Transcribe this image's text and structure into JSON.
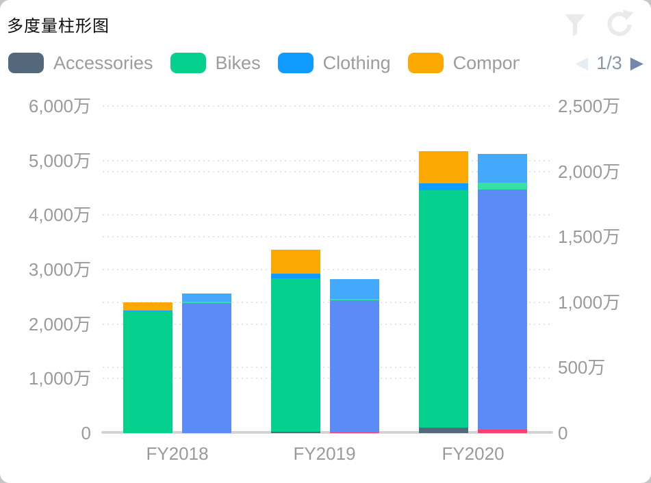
{
  "card": {
    "title": "多度量柱形图"
  },
  "header": {
    "icons": [
      {
        "name": "filter-icon",
        "color": "#eaeaea"
      },
      {
        "name": "refresh-icon",
        "color": "#eaeaea"
      }
    ]
  },
  "legend": {
    "items": [
      {
        "label": "Accessories",
        "color": "#54687B"
      },
      {
        "label": "Bikes",
        "color": "#05D08E"
      },
      {
        "label": "Clothing",
        "color": "#109BFF"
      },
      {
        "label": "Components",
        "color": "#FCA802",
        "displayed_truncated": true
      }
    ],
    "pager": {
      "label": "1/3",
      "prev_icon": "◀",
      "next_icon": "▶",
      "prev_enabled": false,
      "next_enabled": true
    }
  },
  "chart_data": {
    "type": "bar",
    "stacked": true,
    "dual_axis": true,
    "grid": "dotted",
    "legend_position": "top",
    "unit": "万",
    "categories": [
      "FY2018",
      "FY2019",
      "FY2020"
    ],
    "left_axis": {
      "min": 0,
      "max": 6000,
      "tick_step": 1000,
      "tick_labels": [
        "0",
        "1,000万",
        "2,000万",
        "3,000万",
        "4,000万",
        "5,000万",
        "6,000万"
      ]
    },
    "right_axis": {
      "min": 0,
      "max": 2500,
      "tick_step": 500,
      "tick_labels": [
        "0",
        "500万",
        "1,000万",
        "1,500万",
        "2,000万",
        "2,500万"
      ]
    },
    "series_left": [
      {
        "name": "Accessories",
        "color": "#54687B",
        "values": [
          0,
          25,
          100
        ]
      },
      {
        "name": "Bikes",
        "color": "#05D08E",
        "values": [
          2230,
          2815,
          4360
        ]
      },
      {
        "name": "Clothing",
        "color": "#109BFF",
        "values": [
          12,
          90,
          125
        ]
      },
      {
        "name": "Components",
        "color": "#FCA802",
        "values": [
          155,
          440,
          590
        ]
      }
    ],
    "series_right": [
      {
        "name": "",
        "color": "#FB3D6F",
        "values": [
          0,
          5,
          26
        ]
      },
      {
        "name": "",
        "color": "#5B8BF7",
        "values": [
          994,
          1009,
          1836
        ]
      },
      {
        "name": "",
        "color": "#35E1A1",
        "values": [
          10,
          10,
          52
        ]
      },
      {
        "name": "",
        "color": "#45A9FB",
        "values": [
          63,
          152,
          220
        ]
      }
    ],
    "axis_text_color": "#9a9a9a",
    "axis_line_color": "#d3d3d3",
    "grid_color": "#e4e4e4"
  }
}
